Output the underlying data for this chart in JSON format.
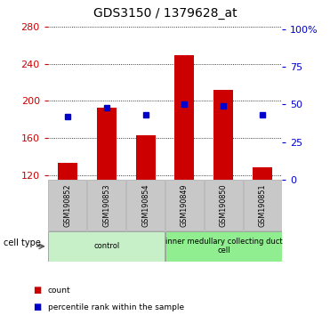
{
  "title": "GDS3150 / 1379628_at",
  "categories": [
    "GSM190852",
    "GSM190853",
    "GSM190854",
    "GSM190849",
    "GSM190850",
    "GSM190851"
  ],
  "count_values": [
    133,
    193,
    163,
    249,
    212,
    128
  ],
  "percentile_values": [
    42,
    48,
    43,
    50,
    49,
    43
  ],
  "ylim_left": [
    115,
    285
  ],
  "ylim_right": [
    0,
    105
  ],
  "yticks_left": [
    120,
    160,
    200,
    240,
    280
  ],
  "yticks_right": [
    0,
    25,
    50,
    75,
    100
  ],
  "ytick_labels_right": [
    "0",
    "25",
    "50",
    "75",
    "100%"
  ],
  "bar_color": "#cc0000",
  "percentile_color": "#0000cc",
  "bg_color": "#ffffff",
  "bar_width": 0.5,
  "cell_type_groups": [
    {
      "label": "control",
      "indices": [
        0,
        1,
        2
      ],
      "color": "#c8f0c8"
    },
    {
      "label": "inner medullary collecting duct\ncell",
      "indices": [
        3,
        4,
        5
      ],
      "color": "#90ee90"
    }
  ],
  "legend_items": [
    {
      "label": "count",
      "color": "#cc0000"
    },
    {
      "label": "percentile rank within the sample",
      "color": "#0000cc"
    }
  ],
  "axis_color_left": "#cc0000",
  "axis_color_right": "#0000cc",
  "tick_gray_bg": "#c8c8c8",
  "cell_type_label": "cell type"
}
